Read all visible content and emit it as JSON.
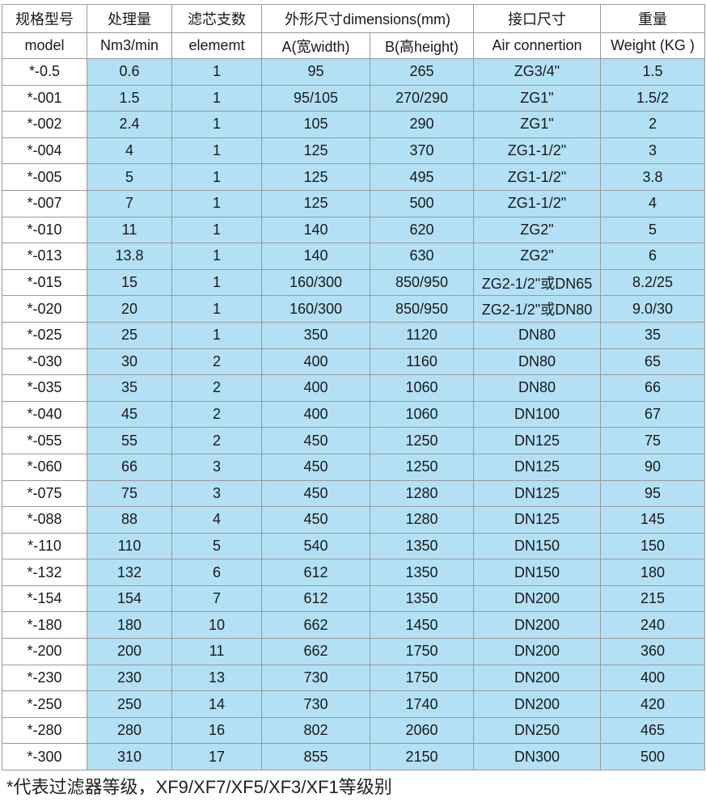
{
  "header_row1": [
    "规格型号",
    "处理量",
    "滤芯支数",
    "外形尺寸dimensions(mm)",
    "接口尺寸",
    "重量"
  ],
  "header_row2": [
    "model",
    "Nm3/min",
    "elememt",
    "A(宽width)",
    "B(高height)",
    "Air connertion",
    "Weight (KG )"
  ],
  "rows": [
    [
      "*-0.5",
      "0.6",
      "1",
      "95",
      "265",
      "ZG3/4\"",
      "1.5"
    ],
    [
      "*-001",
      "1.5",
      "1",
      "95/105",
      "270/290",
      "ZG1\"",
      "1.5/2"
    ],
    [
      "*-002",
      "2.4",
      "1",
      "105",
      "290",
      "ZG1\"",
      "2"
    ],
    [
      "*-004",
      "4",
      "1",
      "125",
      "370",
      "ZG1-1/2\"",
      "3"
    ],
    [
      "*-005",
      "5",
      "1",
      "125",
      "495",
      "ZG1-1/2\"",
      "3.8"
    ],
    [
      "*-007",
      "7",
      "1",
      "125",
      "500",
      "ZG1-1/2\"",
      "4"
    ],
    [
      "*-010",
      "11",
      "1",
      "140",
      "620",
      "ZG2\"",
      "5"
    ],
    [
      "*-013",
      "13.8",
      "1",
      "140",
      "630",
      "ZG2\"",
      "6"
    ],
    [
      "*-015",
      "15",
      "1",
      "160/300",
      "850/950",
      "ZG2-1/2\"或DN65",
      "8.2/25"
    ],
    [
      "*-020",
      "20",
      "1",
      "160/300",
      "850/950",
      "ZG2-1/2\"或DN80",
      "9.0/30"
    ],
    [
      "*-025",
      "25",
      "1",
      "350",
      "1120",
      "DN80",
      "35"
    ],
    [
      "*-030",
      "30",
      "2",
      "400",
      "1160",
      "DN80",
      "65"
    ],
    [
      "*-035",
      "35",
      "2",
      "400",
      "1060",
      "DN80",
      "66"
    ],
    [
      "*-040",
      "45",
      "2",
      "400",
      "1060",
      "DN100",
      "67"
    ],
    [
      "*-055",
      "55",
      "2",
      "450",
      "1250",
      "DN125",
      "75"
    ],
    [
      "*-060",
      "66",
      "3",
      "450",
      "1250",
      "DN125",
      "90"
    ],
    [
      "*-075",
      "75",
      "3",
      "450",
      "1280",
      "DN125",
      "95"
    ],
    [
      "*-088",
      "88",
      "4",
      "450",
      "1280",
      "DN125",
      "145"
    ],
    [
      "*-110",
      "110",
      "5",
      "540",
      "1350",
      "DN150",
      "150"
    ],
    [
      "*-132",
      "132",
      "6",
      "612",
      "1350",
      "DN150",
      "180"
    ],
    [
      "*-154",
      "154",
      "7",
      "612",
      "1350",
      "DN200",
      "215"
    ],
    [
      "*-180",
      "180",
      "10",
      "662",
      "1450",
      "DN200",
      "240"
    ],
    [
      "*-200",
      "200",
      "11",
      "662",
      "1750",
      "DN200",
      "360"
    ],
    [
      "*-230",
      "230",
      "13",
      "730",
      "1750",
      "DN200",
      "400"
    ],
    [
      "*-250",
      "250",
      "14",
      "730",
      "1740",
      "DN200",
      "420"
    ],
    [
      "*-280",
      "280",
      "16",
      "802",
      "2060",
      "DN250",
      "465"
    ],
    [
      "*-300",
      "310",
      "17",
      "855",
      "2150",
      "DN300",
      "500"
    ]
  ],
  "footnote": "*代表过滤器等级，XF9/XF7/XF5/XF3/XF1等级别",
  "colors": {
    "cell_fill": "#b3e0f5",
    "grid": "#9a9a9a"
  }
}
